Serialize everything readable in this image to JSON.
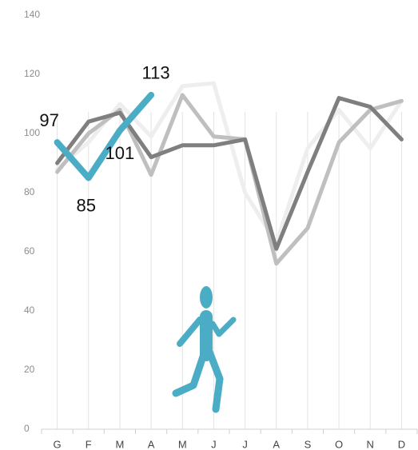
{
  "chart_data": {
    "type": "line",
    "categories": [
      "G",
      "F",
      "M",
      "A",
      "M",
      "J",
      "J",
      "A",
      "S",
      "O",
      "N",
      "D"
    ],
    "series": [
      {
        "color": "#eeeeee",
        "values": [
          88,
          97,
          110,
          99,
          116,
          117,
          80,
          63,
          95,
          108,
          95,
          111
        ]
      },
      {
        "color": "#bfbfbf",
        "values": [
          87,
          100,
          108,
          86,
          113,
          99,
          98,
          56,
          68,
          97,
          108,
          111
        ]
      },
      {
        "color": "#7f7f7f",
        "values": [
          90,
          104,
          107,
          92,
          96,
          96,
          98,
          61,
          87,
          112,
          109,
          98
        ]
      },
      {
        "color": "#4bacc6",
        "values": [
          97,
          85,
          101,
          113,
          null,
          null,
          null,
          null,
          null,
          null,
          null,
          null
        ]
      }
    ],
    "ylim": [
      0,
      140
    ],
    "yticks": [
      0,
      20,
      40,
      60,
      80,
      100,
      120,
      140
    ],
    "grid": true
  }
}
